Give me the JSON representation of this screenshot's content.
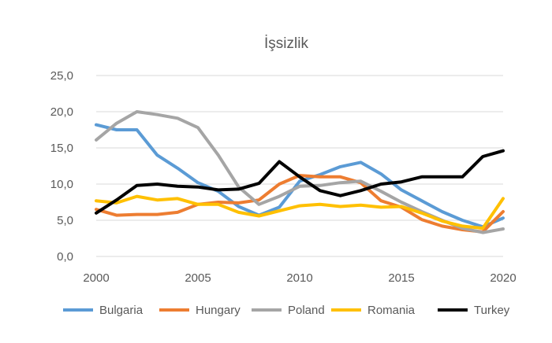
{
  "chart_data": {
    "type": "line",
    "title": "İşsizlik",
    "xlabel": "",
    "ylabel": "",
    "x": [
      2000,
      2001,
      2002,
      2003,
      2004,
      2005,
      2006,
      2007,
      2008,
      2009,
      2010,
      2011,
      2012,
      2013,
      2014,
      2015,
      2016,
      2017,
      2018,
      2019,
      2020
    ],
    "xlim": [
      2000,
      2020
    ],
    "ylim": [
      0,
      25
    ],
    "x_ticks": [
      2000,
      2005,
      2010,
      2015,
      2020
    ],
    "y_ticks": [
      "0,0",
      "5,0",
      "10,0",
      "15,0",
      "20,0",
      "25,0"
    ],
    "y_tick_values": [
      0,
      5,
      10,
      15,
      20,
      25
    ],
    "grid": "horizontal",
    "legend_position": "bottom",
    "series": [
      {
        "name": "Bulgaria",
        "color": "#5B9BD5",
        "values": [
          18.2,
          17.5,
          17.5,
          14.0,
          12.2,
          10.2,
          9.0,
          6.9,
          5.7,
          6.8,
          10.4,
          11.3,
          12.4,
          13.0,
          11.4,
          9.2,
          7.7,
          6.2,
          5.0,
          4.1,
          5.3
        ]
      },
      {
        "name": "Hungary",
        "color": "#ED7D31",
        "values": [
          6.5,
          5.7,
          5.8,
          5.8,
          6.1,
          7.2,
          7.5,
          7.4,
          7.8,
          10.0,
          11.2,
          11.0,
          11.0,
          10.2,
          7.7,
          6.8,
          5.1,
          4.2,
          3.7,
          3.4,
          6.2
        ]
      },
      {
        "name": "Poland",
        "color": "#A5A5A5",
        "values": [
          16.1,
          18.4,
          20.0,
          19.6,
          19.1,
          17.8,
          14.0,
          9.6,
          7.2,
          8.3,
          9.7,
          9.8,
          10.2,
          10.4,
          9.0,
          7.5,
          6.2,
          5.0,
          3.9,
          3.3,
          3.8
        ]
      },
      {
        "name": "Romania",
        "color": "#FFC000",
        "values": [
          7.7,
          7.4,
          8.3,
          7.8,
          8.0,
          7.2,
          7.2,
          6.1,
          5.6,
          6.3,
          7.0,
          7.2,
          6.9,
          7.1,
          6.8,
          6.9,
          6.0,
          4.9,
          4.2,
          3.9,
          8.0
        ]
      },
      {
        "name": "Turkey",
        "color": "#000000",
        "values": [
          6.0,
          7.8,
          9.8,
          10.0,
          9.7,
          9.6,
          9.2,
          9.3,
          10.1,
          13.1,
          11.0,
          9.1,
          8.4,
          9.1,
          10.0,
          10.3,
          11.0,
          11.0,
          11.0,
          13.8,
          14.6
        ]
      }
    ]
  }
}
